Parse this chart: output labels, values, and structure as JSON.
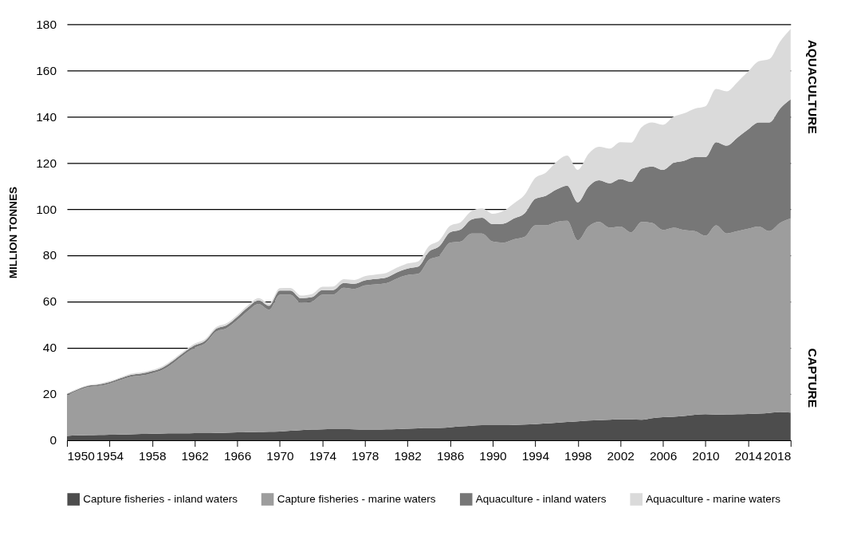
{
  "chart_data": {
    "type": "area",
    "stacked": true,
    "ylabel": "MILLION TONNES",
    "x": [
      1950,
      1951,
      1952,
      1953,
      1954,
      1955,
      1956,
      1957,
      1958,
      1959,
      1960,
      1961,
      1962,
      1963,
      1964,
      1965,
      1966,
      1967,
      1968,
      1969,
      1970,
      1971,
      1972,
      1973,
      1974,
      1975,
      1976,
      1977,
      1978,
      1979,
      1980,
      1981,
      1982,
      1983,
      1984,
      1985,
      1986,
      1987,
      1988,
      1989,
      1990,
      1991,
      1992,
      1993,
      1994,
      1995,
      1996,
      1997,
      1998,
      1999,
      2000,
      2001,
      2002,
      2003,
      2004,
      2005,
      2006,
      2007,
      2008,
      2009,
      2010,
      2011,
      2012,
      2013,
      2014,
      2015,
      2016,
      2017,
      2018
    ],
    "series": [
      {
        "name": "Capture fisheries - inland waters",
        "color": "#4d4d4d",
        "values": [
          1.9,
          2.1,
          2.2,
          2.3,
          2.4,
          2.5,
          2.6,
          2.7,
          2.8,
          2.9,
          3.0,
          3.0,
          3.1,
          3.1,
          3.2,
          3.3,
          3.4,
          3.5,
          3.6,
          3.7,
          3.8,
          4.1,
          4.4,
          4.6,
          4.7,
          4.8,
          4.8,
          4.7,
          4.6,
          4.6,
          4.7,
          4.8,
          5.0,
          5.2,
          5.3,
          5.3,
          5.6,
          6.0,
          6.3,
          6.5,
          6.5,
          6.5,
          6.6,
          6.8,
          7.0,
          7.3,
          7.6,
          7.9,
          8.2,
          8.5,
          8.7,
          8.9,
          9.0,
          9.0,
          8.9,
          9.6,
          10.0,
          10.2,
          10.5,
          11.0,
          11.3,
          11.1,
          11.2,
          11.3,
          11.4,
          11.5,
          11.8,
          12.2,
          12.0
        ]
      },
      {
        "name": "Capture fisheries - marine waters",
        "color": "#9d9d9d",
        "values": [
          17.6,
          19.4,
          20.8,
          21.2,
          22.1,
          23.5,
          24.9,
          25.3,
          26.2,
          27.6,
          30.5,
          34.0,
          36.9,
          38.9,
          43.8,
          45.2,
          48.6,
          52.5,
          55.4,
          52.8,
          59.2,
          58.9,
          55.1,
          55.4,
          58.3,
          58.2,
          61.2,
          60.8,
          62.4,
          62.9,
          63.3,
          65.2,
          66.5,
          66.8,
          72.7,
          74.7,
          79.9,
          80.0,
          83.2,
          83.0,
          79.5,
          79.0,
          80.4,
          81.2,
          86.0,
          85.7,
          86.9,
          87.1,
          78.3,
          84.0,
          85.8,
          83.1,
          83.5,
          81.0,
          85.6,
          84.4,
          81.0,
          81.8,
          80.5,
          79.5,
          77.2,
          81.9,
          78.3,
          79.2,
          80.1,
          81.0,
          78.7,
          81.8,
          84.0
        ]
      },
      {
        "name": "Aquaculture - inland waters",
        "color": "#777777",
        "values": [
          0.5,
          0.5,
          0.6,
          0.6,
          0.7,
          0.8,
          0.8,
          0.9,
          0.9,
          1.0,
          1.0,
          1.0,
          1.1,
          1.1,
          1.2,
          1.3,
          1.4,
          1.5,
          1.6,
          1.7,
          1.8,
          1.8,
          1.9,
          1.9,
          2.0,
          2.0,
          2.1,
          2.2,
          2.2,
          2.3,
          2.4,
          2.6,
          2.8,
          3.1,
          3.5,
          4.0,
          4.5,
          5.2,
          6.0,
          6.8,
          7.5,
          8.2,
          9.0,
          10.2,
          11.5,
          12.8,
          14.0,
          15.2,
          16.5,
          17.2,
          18.0,
          19.2,
          20.5,
          21.8,
          23.0,
          24.5,
          26.0,
          28.0,
          30.0,
          32.0,
          34.0,
          36.0,
          38.0,
          40.5,
          43.0,
          45.0,
          47.0,
          49.5,
          51.5
        ]
      },
      {
        "name": "Aquaculture - marine waters",
        "color": "#dadada",
        "values": [
          0.3,
          0.3,
          0.3,
          0.4,
          0.4,
          0.4,
          0.5,
          0.5,
          0.5,
          0.6,
          0.6,
          0.6,
          0.7,
          0.7,
          0.7,
          0.8,
          0.8,
          0.9,
          0.9,
          1.0,
          1.0,
          1.1,
          1.2,
          1.3,
          1.4,
          1.5,
          1.6,
          1.7,
          1.8,
          1.9,
          2.0,
          2.1,
          2.2,
          2.3,
          2.4,
          2.5,
          2.8,
          3.2,
          3.6,
          4.0,
          4.5,
          5.5,
          6.5,
          8.0,
          9.0,
          10.0,
          12.0,
          13.0,
          14.0,
          14.2,
          14.5,
          15.0,
          16.0,
          17.0,
          18.0,
          19.0,
          19.5,
          20.0,
          20.5,
          21.0,
          22.0,
          23.0,
          23.5,
          24.0,
          25.0,
          26.5,
          27.5,
          29.0,
          30.5
        ]
      }
    ],
    "xlim": [
      1950,
      2018
    ],
    "xticks": [
      1950,
      1954,
      1958,
      1962,
      1966,
      1970,
      1974,
      1978,
      1982,
      1986,
      1990,
      1994,
      1998,
      2002,
      2006,
      2010,
      2014,
      2018
    ],
    "ylim": [
      0,
      180
    ],
    "yticks": [
      0,
      20,
      40,
      60,
      80,
      100,
      120,
      140,
      160,
      180
    ],
    "grid": "y",
    "legend": "bottom",
    "annotations": [
      "AQUACULTURE",
      "CAPTURE"
    ]
  }
}
